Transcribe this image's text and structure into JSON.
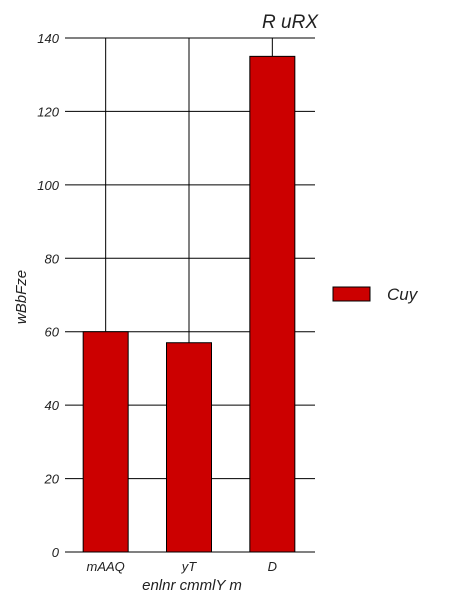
{
  "chart_data": {
    "type": "bar",
    "title": "R uRX",
    "xlabel": "enlnr cmmlY m",
    "ylabel": "wBbFze",
    "categories": [
      "mAAQ",
      "yT",
      "D"
    ],
    "series": [
      {
        "name": "Cuy",
        "values": [
          60,
          57,
          135
        ],
        "color": "#cc0000"
      }
    ],
    "ylim": [
      0,
      140
    ],
    "yticks": [
      0,
      20,
      40,
      60,
      80,
      100,
      120,
      140
    ],
    "grid": true,
    "legend_position": "right"
  }
}
